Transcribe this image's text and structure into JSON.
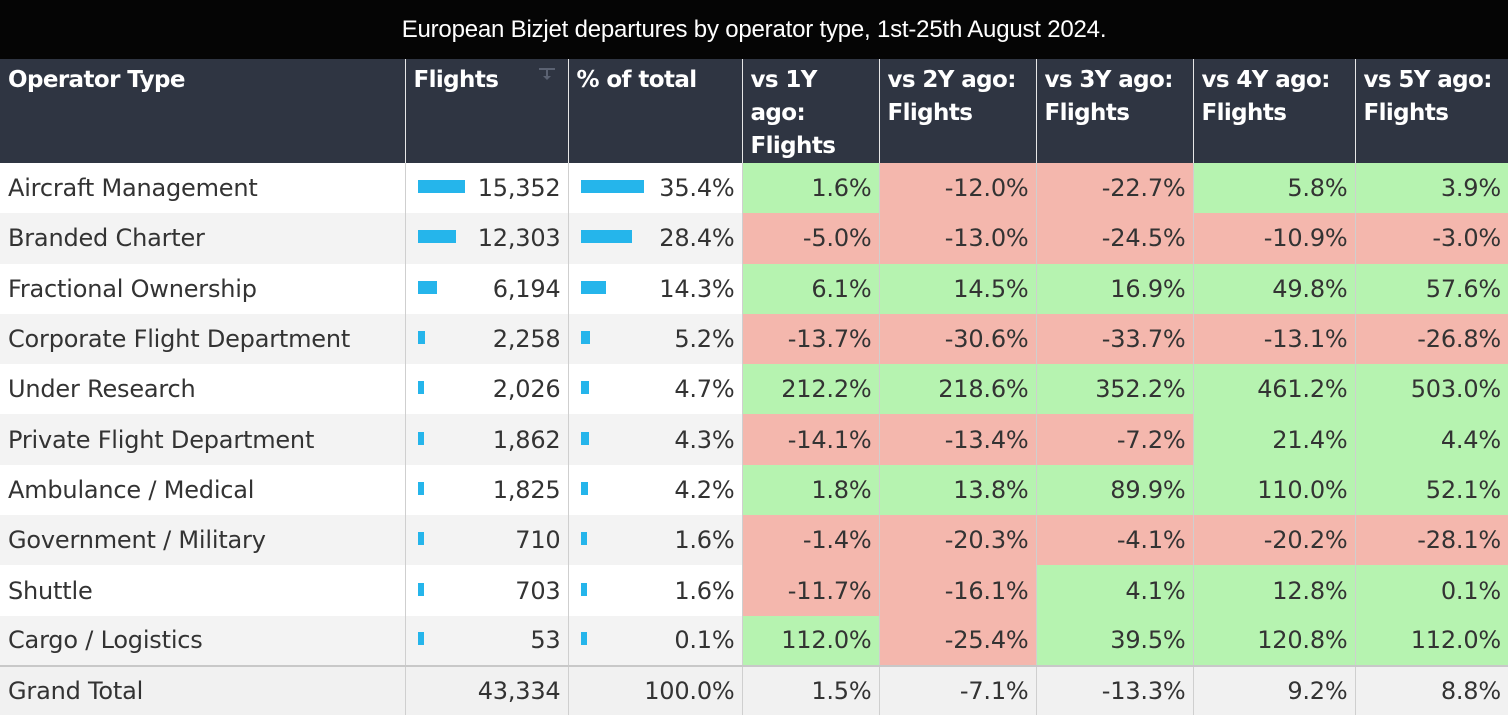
{
  "title": "European Bizjet departures by operator type, 1st-25th August 2024.",
  "colors": {
    "positive": "#b6f3b0",
    "negative": "#f4b7ad",
    "bar": "#25b5eb",
    "header": "#2f3542"
  },
  "header": {
    "operator_type": "Operator Type",
    "flights": "Flights",
    "pct_total": "% of total",
    "vs1y": [
      "vs 1Y ago:",
      "Flights"
    ],
    "vs2y": [
      "vs 2Y ago:",
      "Flights"
    ],
    "vs3y": [
      "vs 3Y ago:",
      "Flights"
    ],
    "vs4y": [
      "vs 4Y ago:",
      "Flights"
    ],
    "vs5y": [
      "vs 5Y ago:",
      "Flights"
    ],
    "sort_icon": "sort-descending-icon"
  },
  "chart_data": {
    "type": "table",
    "title": "European Bizjet departures by operator type, 1st-25th August 2024.",
    "columns": [
      "Operator Type",
      "Flights",
      "% of total",
      "vs 1Y ago: Flights",
      "vs 2Y ago: Flights",
      "vs 3Y ago: Flights",
      "vs 4Y ago: Flights",
      "vs 5Y ago: Flights"
    ],
    "rows": [
      {
        "name": "Aircraft Management",
        "flights": 15352,
        "flights_label": "15,352",
        "pct": 35.4,
        "pct_label": "35.4%",
        "vs": [
          "1.6%",
          "-12.0%",
          "-22.7%",
          "5.8%",
          "3.9%"
        ]
      },
      {
        "name": "Branded Charter",
        "flights": 12303,
        "flights_label": "12,303",
        "pct": 28.4,
        "pct_label": "28.4%",
        "vs": [
          "-5.0%",
          "-13.0%",
          "-24.5%",
          "-10.9%",
          "-3.0%"
        ]
      },
      {
        "name": "Fractional Ownership",
        "flights": 6194,
        "flights_label": "6,194",
        "pct": 14.3,
        "pct_label": "14.3%",
        "vs": [
          "6.1%",
          "14.5%",
          "16.9%",
          "49.8%",
          "57.6%"
        ]
      },
      {
        "name": "Corporate Flight Department",
        "flights": 2258,
        "flights_label": "2,258",
        "pct": 5.2,
        "pct_label": "5.2%",
        "vs": [
          "-13.7%",
          "-30.6%",
          "-33.7%",
          "-13.1%",
          "-26.8%"
        ]
      },
      {
        "name": "Under Research",
        "flights": 2026,
        "flights_label": "2,026",
        "pct": 4.7,
        "pct_label": "4.7%",
        "vs": [
          "212.2%",
          "218.6%",
          "352.2%",
          "461.2%",
          "503.0%"
        ]
      },
      {
        "name": "Private Flight Department",
        "flights": 1862,
        "flights_label": "1,862",
        "pct": 4.3,
        "pct_label": "4.3%",
        "vs": [
          "-14.1%",
          "-13.4%",
          "-7.2%",
          "21.4%",
          "4.4%"
        ]
      },
      {
        "name": "Ambulance / Medical",
        "flights": 1825,
        "flights_label": "1,825",
        "pct": 4.2,
        "pct_label": "4.2%",
        "vs": [
          "1.8%",
          "13.8%",
          "89.9%",
          "110.0%",
          "52.1%"
        ]
      },
      {
        "name": "Government / Military",
        "flights": 710,
        "flights_label": "710",
        "pct": 1.6,
        "pct_label": "1.6%",
        "vs": [
          "-1.4%",
          "-20.3%",
          "-4.1%",
          "-20.2%",
          "-28.1%"
        ]
      },
      {
        "name": "Shuttle",
        "flights": 703,
        "flights_label": "703",
        "pct": 1.6,
        "pct_label": "1.6%",
        "vs": [
          "-11.7%",
          "-16.1%",
          "4.1%",
          "12.8%",
          "0.1%"
        ]
      },
      {
        "name": "Cargo / Logistics",
        "flights": 53,
        "flights_label": "53",
        "pct": 0.1,
        "pct_label": "0.1%",
        "vs": [
          "112.0%",
          "-25.4%",
          "39.5%",
          "120.8%",
          "112.0%"
        ]
      }
    ],
    "total": {
      "name": "Grand Total",
      "flights_label": "43,334",
      "pct_label": "100.0%",
      "vs": [
        "1.5%",
        "-7.1%",
        "-13.3%",
        "9.2%",
        "8.8%"
      ]
    }
  }
}
